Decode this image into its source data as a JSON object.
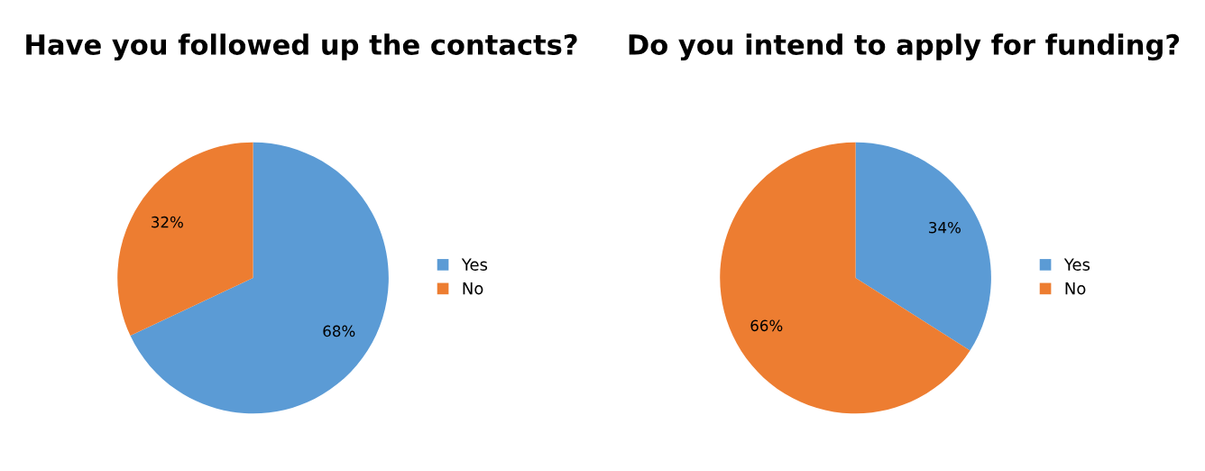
{
  "chart_data": [
    {
      "type": "pie",
      "title": "Have you followed up the contacts?",
      "categories": [
        "Yes",
        "No"
      ],
      "values": [
        68,
        32
      ],
      "colors": [
        "#5b9bd5",
        "#ed7d31"
      ],
      "value_labels": [
        "68%",
        "32%"
      ],
      "legend": "right"
    },
    {
      "type": "pie",
      "title": "Do you intend to apply for funding?",
      "categories": [
        "Yes",
        "No"
      ],
      "values": [
        34,
        66
      ],
      "colors": [
        "#5b9bd5",
        "#ed7d31"
      ],
      "value_labels": [
        "34%",
        "66%"
      ],
      "legend": "right"
    }
  ]
}
